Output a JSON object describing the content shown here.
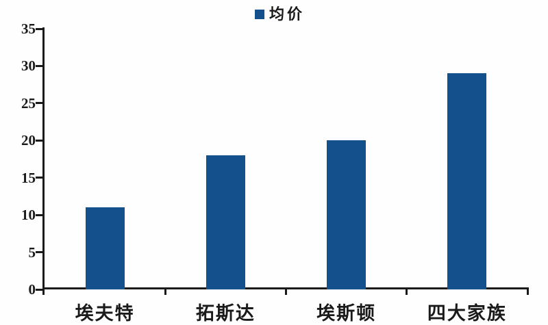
{
  "chart_data": {
    "type": "bar",
    "title": "",
    "legend": "均价",
    "categories": [
      "埃夫特",
      "拓斯达",
      "埃斯顿",
      "四大家族"
    ],
    "values": [
      11,
      18,
      20,
      29
    ],
    "xlabel": "",
    "ylabel": "",
    "ylim": [
      0,
      35
    ],
    "ytick_step": 5,
    "ytick_labels": [
      "0",
      "5",
      "10",
      "15",
      "20",
      "25",
      "30",
      "35"
    ],
    "grid": false,
    "legend_position": "top-center",
    "bar_color": "#14518C",
    "axis_color": "#1a1a1a",
    "text_color": "#1a1a1a",
    "background_color": "#ffffff"
  }
}
